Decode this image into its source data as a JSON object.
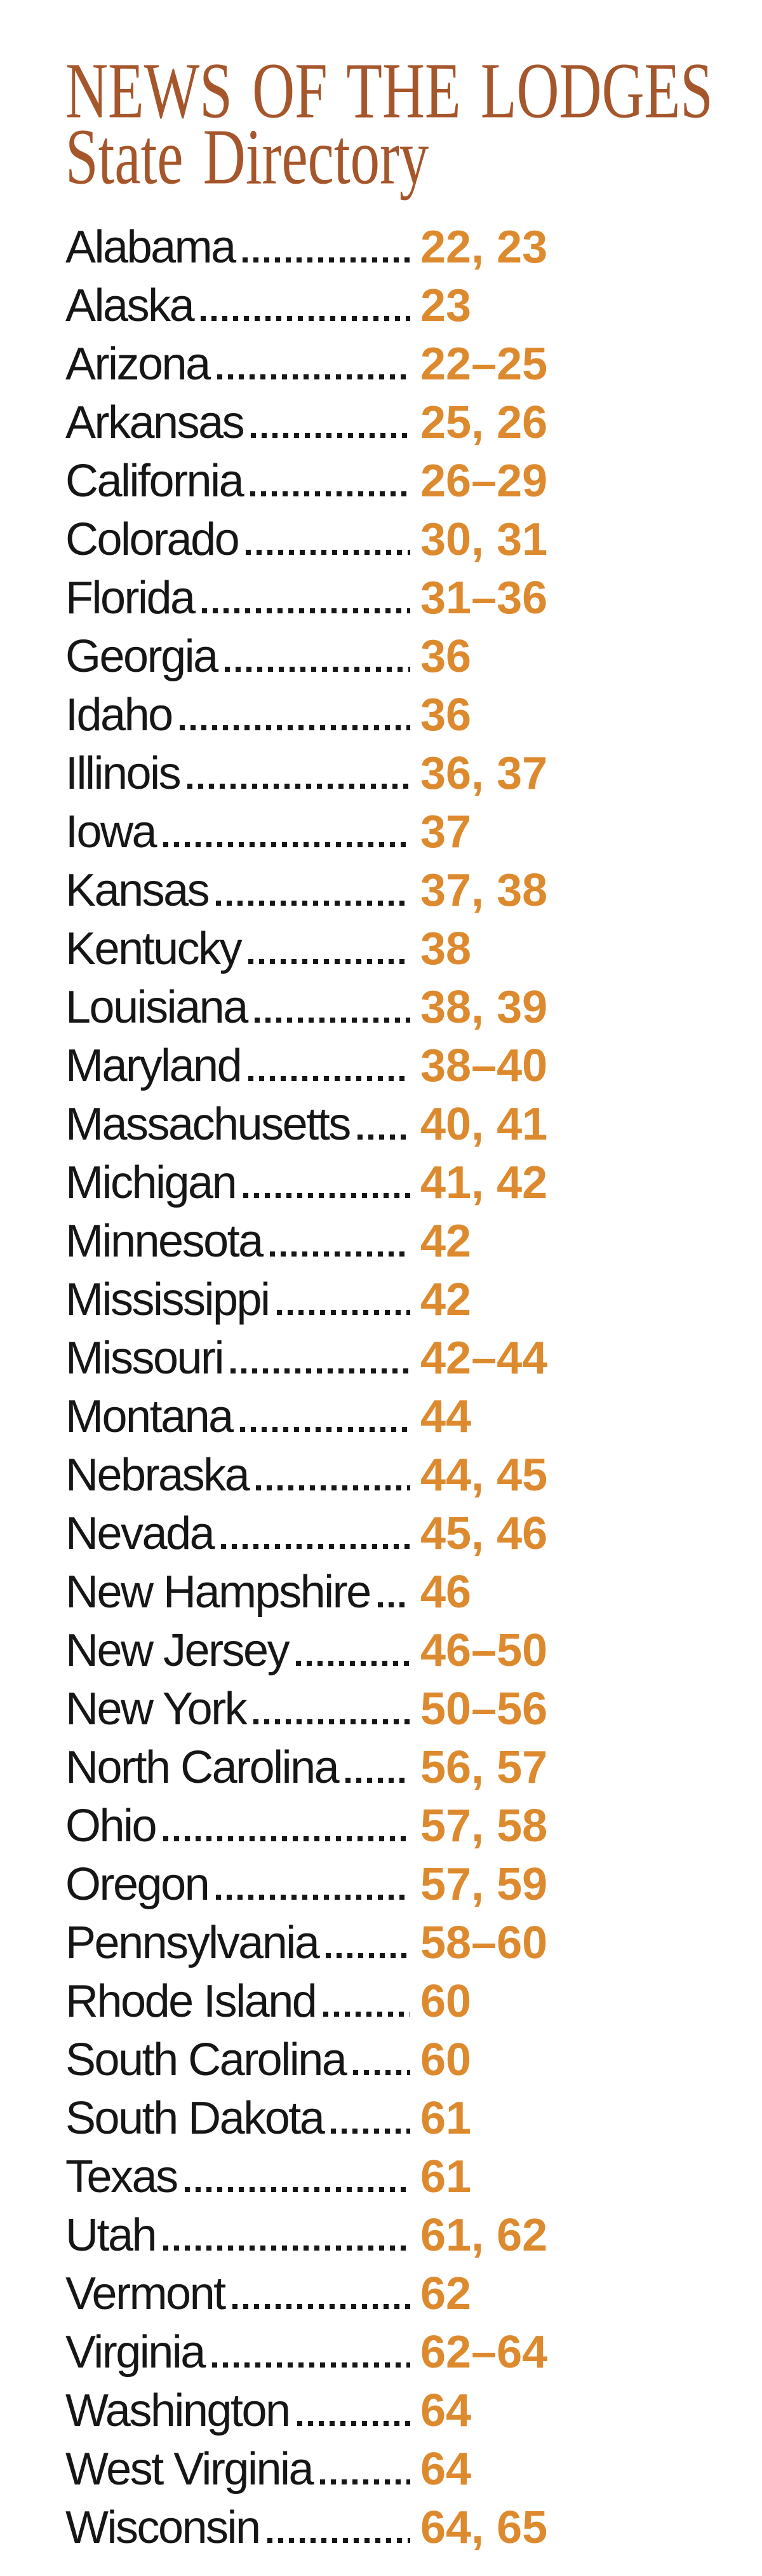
{
  "header": {
    "title_line1": "NEWS OF THE LODGES",
    "title_line2": "State Directory"
  },
  "colors": {
    "title": "#a5562b",
    "page_numbers": "#dd8a2f",
    "state_text": "#161616"
  },
  "directory": {
    "entries": [
      {
        "state": "Alabama",
        "pages": "22, 23"
      },
      {
        "state": "Alaska",
        "pages": "23"
      },
      {
        "state": "Arizona",
        "pages": "22–25"
      },
      {
        "state": "Arkansas",
        "pages": "25, 26"
      },
      {
        "state": "California",
        "pages": "26–29"
      },
      {
        "state": "Colorado",
        "pages": "30, 31"
      },
      {
        "state": "Florida",
        "pages": "31–36"
      },
      {
        "state": "Georgia",
        "pages": "36"
      },
      {
        "state": "Idaho",
        "pages": "36"
      },
      {
        "state": "Illinois",
        "pages": "36, 37"
      },
      {
        "state": "Iowa",
        "pages": "37"
      },
      {
        "state": "Kansas",
        "pages": "37, 38"
      },
      {
        "state": "Kentucky",
        "pages": "38"
      },
      {
        "state": "Louisiana",
        "pages": "38, 39"
      },
      {
        "state": "Maryland",
        "pages": "38–40"
      },
      {
        "state": "Massachusetts",
        "pages": "40, 41"
      },
      {
        "state": "Michigan",
        "pages": "41, 42"
      },
      {
        "state": "Minnesota",
        "pages": "42"
      },
      {
        "state": "Mississippi",
        "pages": "42"
      },
      {
        "state": "Missouri",
        "pages": "42–44"
      },
      {
        "state": "Montana",
        "pages": "44"
      },
      {
        "state": "Nebraska",
        "pages": "44, 45"
      },
      {
        "state": "Nevada",
        "pages": "45, 46"
      },
      {
        "state": "New Hampshire",
        "pages": "46"
      },
      {
        "state": "New Jersey",
        "pages": "46–50"
      },
      {
        "state": "New York",
        "pages": "50–56"
      },
      {
        "state": "North Carolina",
        "pages": "56, 57"
      },
      {
        "state": "Ohio",
        "pages": "57, 58"
      },
      {
        "state": "Oregon",
        "pages": "57, 59"
      },
      {
        "state": "Pennsylvania",
        "pages": "58–60"
      },
      {
        "state": "Rhode Island",
        "pages": "60"
      },
      {
        "state": "South Carolina",
        "pages": "60"
      },
      {
        "state": "South Dakota",
        "pages": "61"
      },
      {
        "state": "Texas",
        "pages": "61"
      },
      {
        "state": "Utah",
        "pages": "61, 62"
      },
      {
        "state": "Vermont",
        "pages": "62"
      },
      {
        "state": "Virginia",
        "pages": "62–64"
      },
      {
        "state": "Washington",
        "pages": "64"
      },
      {
        "state": "West Virginia",
        "pages": "64"
      },
      {
        "state": "Wisconsin",
        "pages": "64, 65"
      }
    ]
  }
}
